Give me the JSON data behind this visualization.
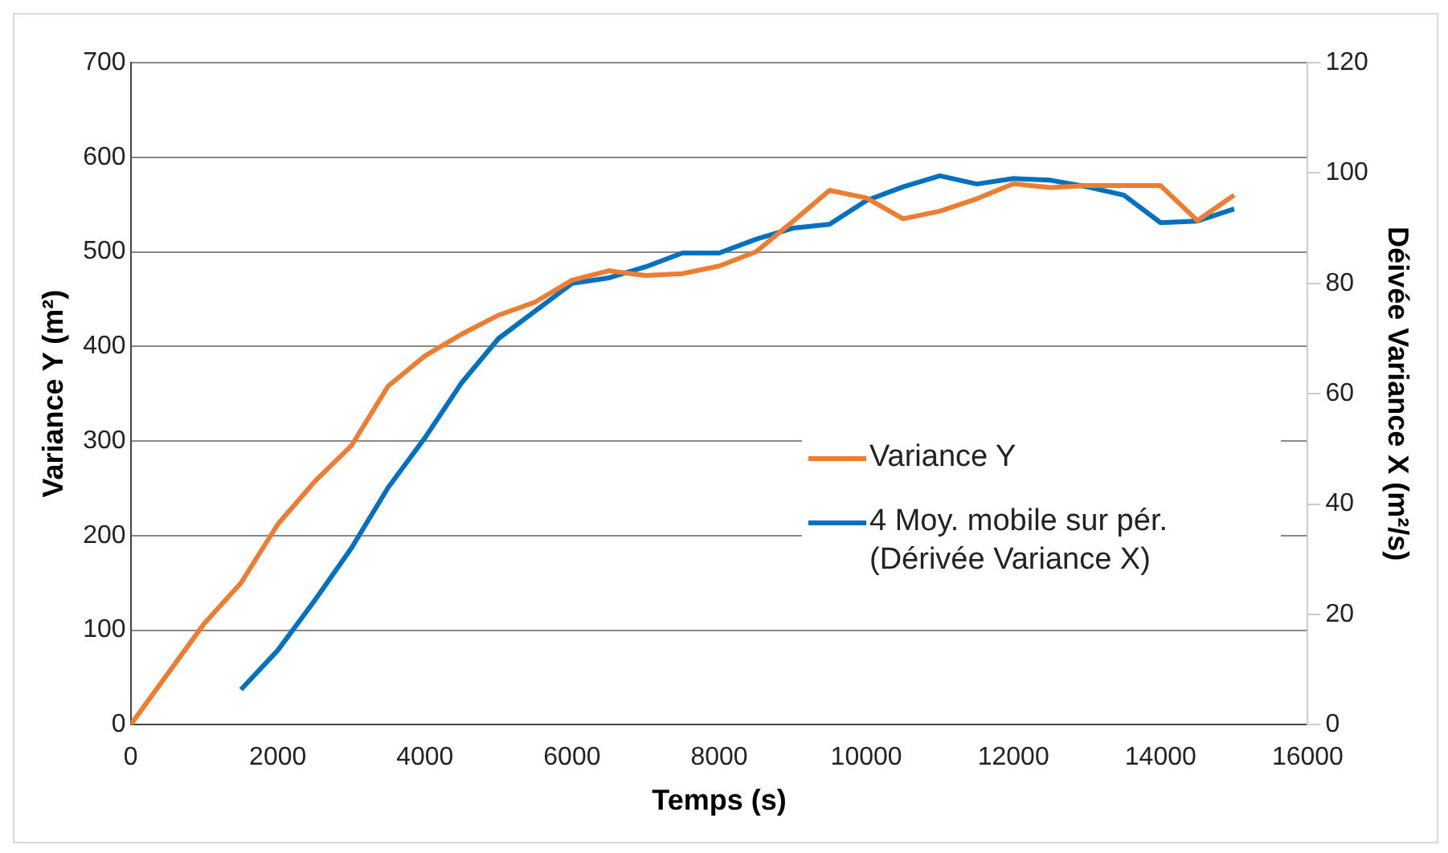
{
  "chart_data": {
    "type": "line",
    "xlabel": "Temps (s)",
    "ylabel": "Variance Y (m²)",
    "y2label": "Déivée Variance X (m²/s)",
    "xlim": [
      0,
      16000
    ],
    "xticks": [
      0,
      2000,
      4000,
      6000,
      8000,
      10000,
      12000,
      14000,
      16000
    ],
    "ylim": [
      0,
      700
    ],
    "yticks": [
      0,
      100,
      200,
      300,
      400,
      500,
      600,
      700
    ],
    "y2lim": [
      0,
      120
    ],
    "y2ticks": [
      0,
      20,
      40,
      60,
      80,
      100,
      120
    ],
    "grid": "y",
    "legend": "right",
    "marker": "none",
    "line_style": "solid",
    "series": [
      {
        "name": "Variance Y",
        "color": "#ed7d31",
        "x": [
          0,
          1000,
          1500,
          2000,
          2500,
          3000,
          3500,
          4000,
          4500,
          5000,
          5500,
          6000,
          6500,
          7000,
          7500,
          8000,
          8500,
          9000,
          9500,
          10000,
          10500,
          11000,
          11500,
          12000,
          12500,
          13000,
          13500,
          14000,
          14500,
          15000
        ],
        "values": [
          0,
          107,
          150,
          212,
          257,
          295,
          358,
          390,
          413,
          433,
          447,
          470,
          480,
          475,
          477,
          485,
          500,
          532,
          565,
          557,
          535,
          543,
          556,
          572,
          568,
          570,
          570,
          570,
          533,
          560
        ]
      },
      {
        "name": "4 Moy. mobile sur pér. (Dérivée Variance X)",
        "color": "#0070c0",
        "axis": "y2",
        "x": [
          1500,
          2000,
          2500,
          3000,
          3500,
          4000,
          4500,
          5000,
          5500,
          6000,
          6500,
          7000,
          7500,
          8000,
          8500,
          9000,
          9500,
          10000,
          10500,
          11000,
          11500,
          12000,
          12500,
          13000,
          13500,
          14000,
          14500,
          15000
        ],
        "values": [
          6.4,
          13.5,
          22.5,
          32,
          43,
          52,
          62,
          70,
          75,
          80,
          81,
          83,
          85.5,
          85.5,
          88,
          90,
          90.7,
          95,
          97.5,
          99.5,
          98,
          99,
          98.7,
          97.5,
          96,
          91,
          91.3,
          93.5
        ]
      }
    ]
  }
}
